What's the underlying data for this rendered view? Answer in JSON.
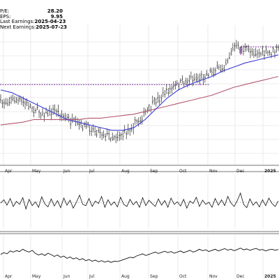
{
  "stats": [
    {
      "label": "P/E:",
      "value": "28.20"
    },
    {
      "label": "EPS:",
      "value": "9.95"
    },
    {
      "label": "Last Earnings:",
      "value": "2025-04-23"
    },
    {
      "label": "Next Earnings:",
      "value": "2025-07-23"
    }
  ],
  "chart_data": [
    {
      "type": "ohlc",
      "title": "",
      "x_ticks": [
        "Apr",
        "May",
        "Jun",
        "Jul",
        "Aug",
        "Sep",
        "Oct",
        "Nov",
        "Dec",
        "2025"
      ],
      "price": [
        {
          "m": "Apr",
          "v": 0.54
        },
        {
          "m": "Apr",
          "v": 0.51
        },
        {
          "m": "Apr",
          "v": 0.53
        },
        {
          "m": "May",
          "v": 0.58
        },
        {
          "m": "May",
          "v": 0.62
        },
        {
          "m": "May",
          "v": 0.59
        },
        {
          "m": "Jun",
          "v": 0.66
        },
        {
          "m": "Jun",
          "v": 0.7
        },
        {
          "m": "Jun",
          "v": 0.72
        },
        {
          "m": "Jul",
          "v": 0.75
        },
        {
          "m": "Jul",
          "v": 0.79
        },
        {
          "m": "Jul",
          "v": 0.77
        },
        {
          "m": "Aug",
          "v": 0.7
        },
        {
          "m": "Aug",
          "v": 0.62
        },
        {
          "m": "Sep",
          "v": 0.52
        },
        {
          "m": "Sep",
          "v": 0.45
        },
        {
          "m": "Oct",
          "v": 0.4
        },
        {
          "m": "Oct",
          "v": 0.36
        },
        {
          "m": "Nov",
          "v": 0.35
        },
        {
          "m": "Nov",
          "v": 0.3
        },
        {
          "m": "Nov",
          "v": 0.28
        },
        {
          "m": "Dec",
          "v": 0.12
        },
        {
          "m": "Dec",
          "v": 0.14
        },
        {
          "m": "Dec",
          "v": 0.16
        },
        {
          "m": "2025",
          "v": 0.17
        },
        {
          "m": "2025",
          "v": 0.14
        }
      ],
      "moving_average_short": [
        0.44,
        0.46,
        0.5,
        0.54,
        0.58,
        0.62,
        0.66,
        0.68,
        0.7,
        0.72,
        0.74,
        0.74,
        0.72,
        0.66,
        0.58,
        0.5,
        0.44,
        0.4,
        0.37,
        0.34,
        0.3,
        0.27,
        0.24,
        0.22,
        0.2,
        0.18
      ],
      "moving_average_long": [
        0.7,
        0.69,
        0.68,
        0.66,
        0.66,
        0.66,
        0.66,
        0.66,
        0.65,
        0.65,
        0.64,
        0.63,
        0.62,
        0.6,
        0.58,
        0.56,
        0.54,
        0.52,
        0.5,
        0.48,
        0.45,
        0.42,
        0.4,
        0.38,
        0.36,
        0.34
      ],
      "resistance_level_1": 0.4,
      "resistance_level_2": 0.12,
      "colors": {
        "bars": "#222222",
        "ma_short": "#3a3ad6",
        "ma_long": "#b3566d",
        "resistance": "#7a2aa0",
        "grid": "#dddddd"
      },
      "grid": true
    },
    {
      "type": "line",
      "title": "",
      "values": [
        0.52,
        0.44,
        0.57,
        0.41,
        0.6,
        0.48,
        0.55,
        0.39,
        0.66,
        0.43,
        0.58,
        0.49,
        0.62,
        0.37,
        0.54,
        0.61,
        0.42,
        0.59,
        0.46,
        0.63,
        0.4,
        0.57,
        0.45,
        0.64,
        0.5,
        0.33,
        0.55,
        0.58,
        0.41,
        0.6,
        0.47,
        0.53,
        0.36,
        0.62,
        0.44,
        0.57,
        0.49,
        0.61,
        0.38,
        0.55,
        0.6,
        0.43,
        0.56,
        0.48,
        0.62,
        0.39,
        0.58,
        0.45,
        0.53,
        0.6,
        0.42,
        0.57,
        0.46,
        0.62,
        0.4,
        0.55,
        0.49,
        0.59,
        0.43,
        0.64,
        0.47,
        0.53,
        0.38,
        0.6,
        0.45,
        0.55,
        0.5,
        0.62,
        0.41,
        0.57,
        0.44,
        0.58,
        0.36,
        0.52,
        0.6,
        0.46,
        0.28,
        0.55,
        0.63,
        0.42,
        0.57,
        0.49,
        0.61,
        0.44,
        0.58,
        0.4,
        0.53,
        0.6,
        0.47
      ],
      "reference": 0.5,
      "colors": {
        "line": "#111111",
        "reference": "#888888"
      }
    },
    {
      "type": "line",
      "title": "",
      "values": [
        0.48,
        0.42,
        0.46,
        0.36,
        0.4,
        0.35,
        0.38,
        0.3,
        0.36,
        0.4,
        0.34,
        0.45,
        0.5,
        0.46,
        0.52,
        0.44,
        0.49,
        0.55,
        0.5,
        0.58,
        0.54,
        0.62,
        0.57,
        0.64,
        0.6,
        0.67,
        0.63,
        0.7,
        0.66,
        0.72,
        0.68,
        0.74,
        0.7,
        0.75,
        0.71,
        0.76,
        0.72,
        0.73,
        0.7,
        0.66,
        0.62,
        0.58,
        0.6,
        0.54,
        0.5,
        0.46,
        0.52,
        0.48,
        0.44,
        0.4,
        0.45,
        0.41,
        0.37,
        0.42,
        0.38,
        0.44,
        0.4,
        0.36,
        0.42,
        0.38,
        0.34,
        0.4,
        0.36,
        0.3,
        0.35,
        0.32,
        0.38,
        0.34,
        0.3,
        0.36,
        0.32,
        0.28,
        0.33,
        0.3,
        0.35,
        0.31,
        0.26,
        0.32,
        0.29,
        0.34,
        0.3,
        0.27,
        0.33,
        0.31,
        0.36,
        0.32,
        0.3,
        0.34,
        0.31
      ],
      "colors": {
        "line": "#111111"
      }
    }
  ]
}
